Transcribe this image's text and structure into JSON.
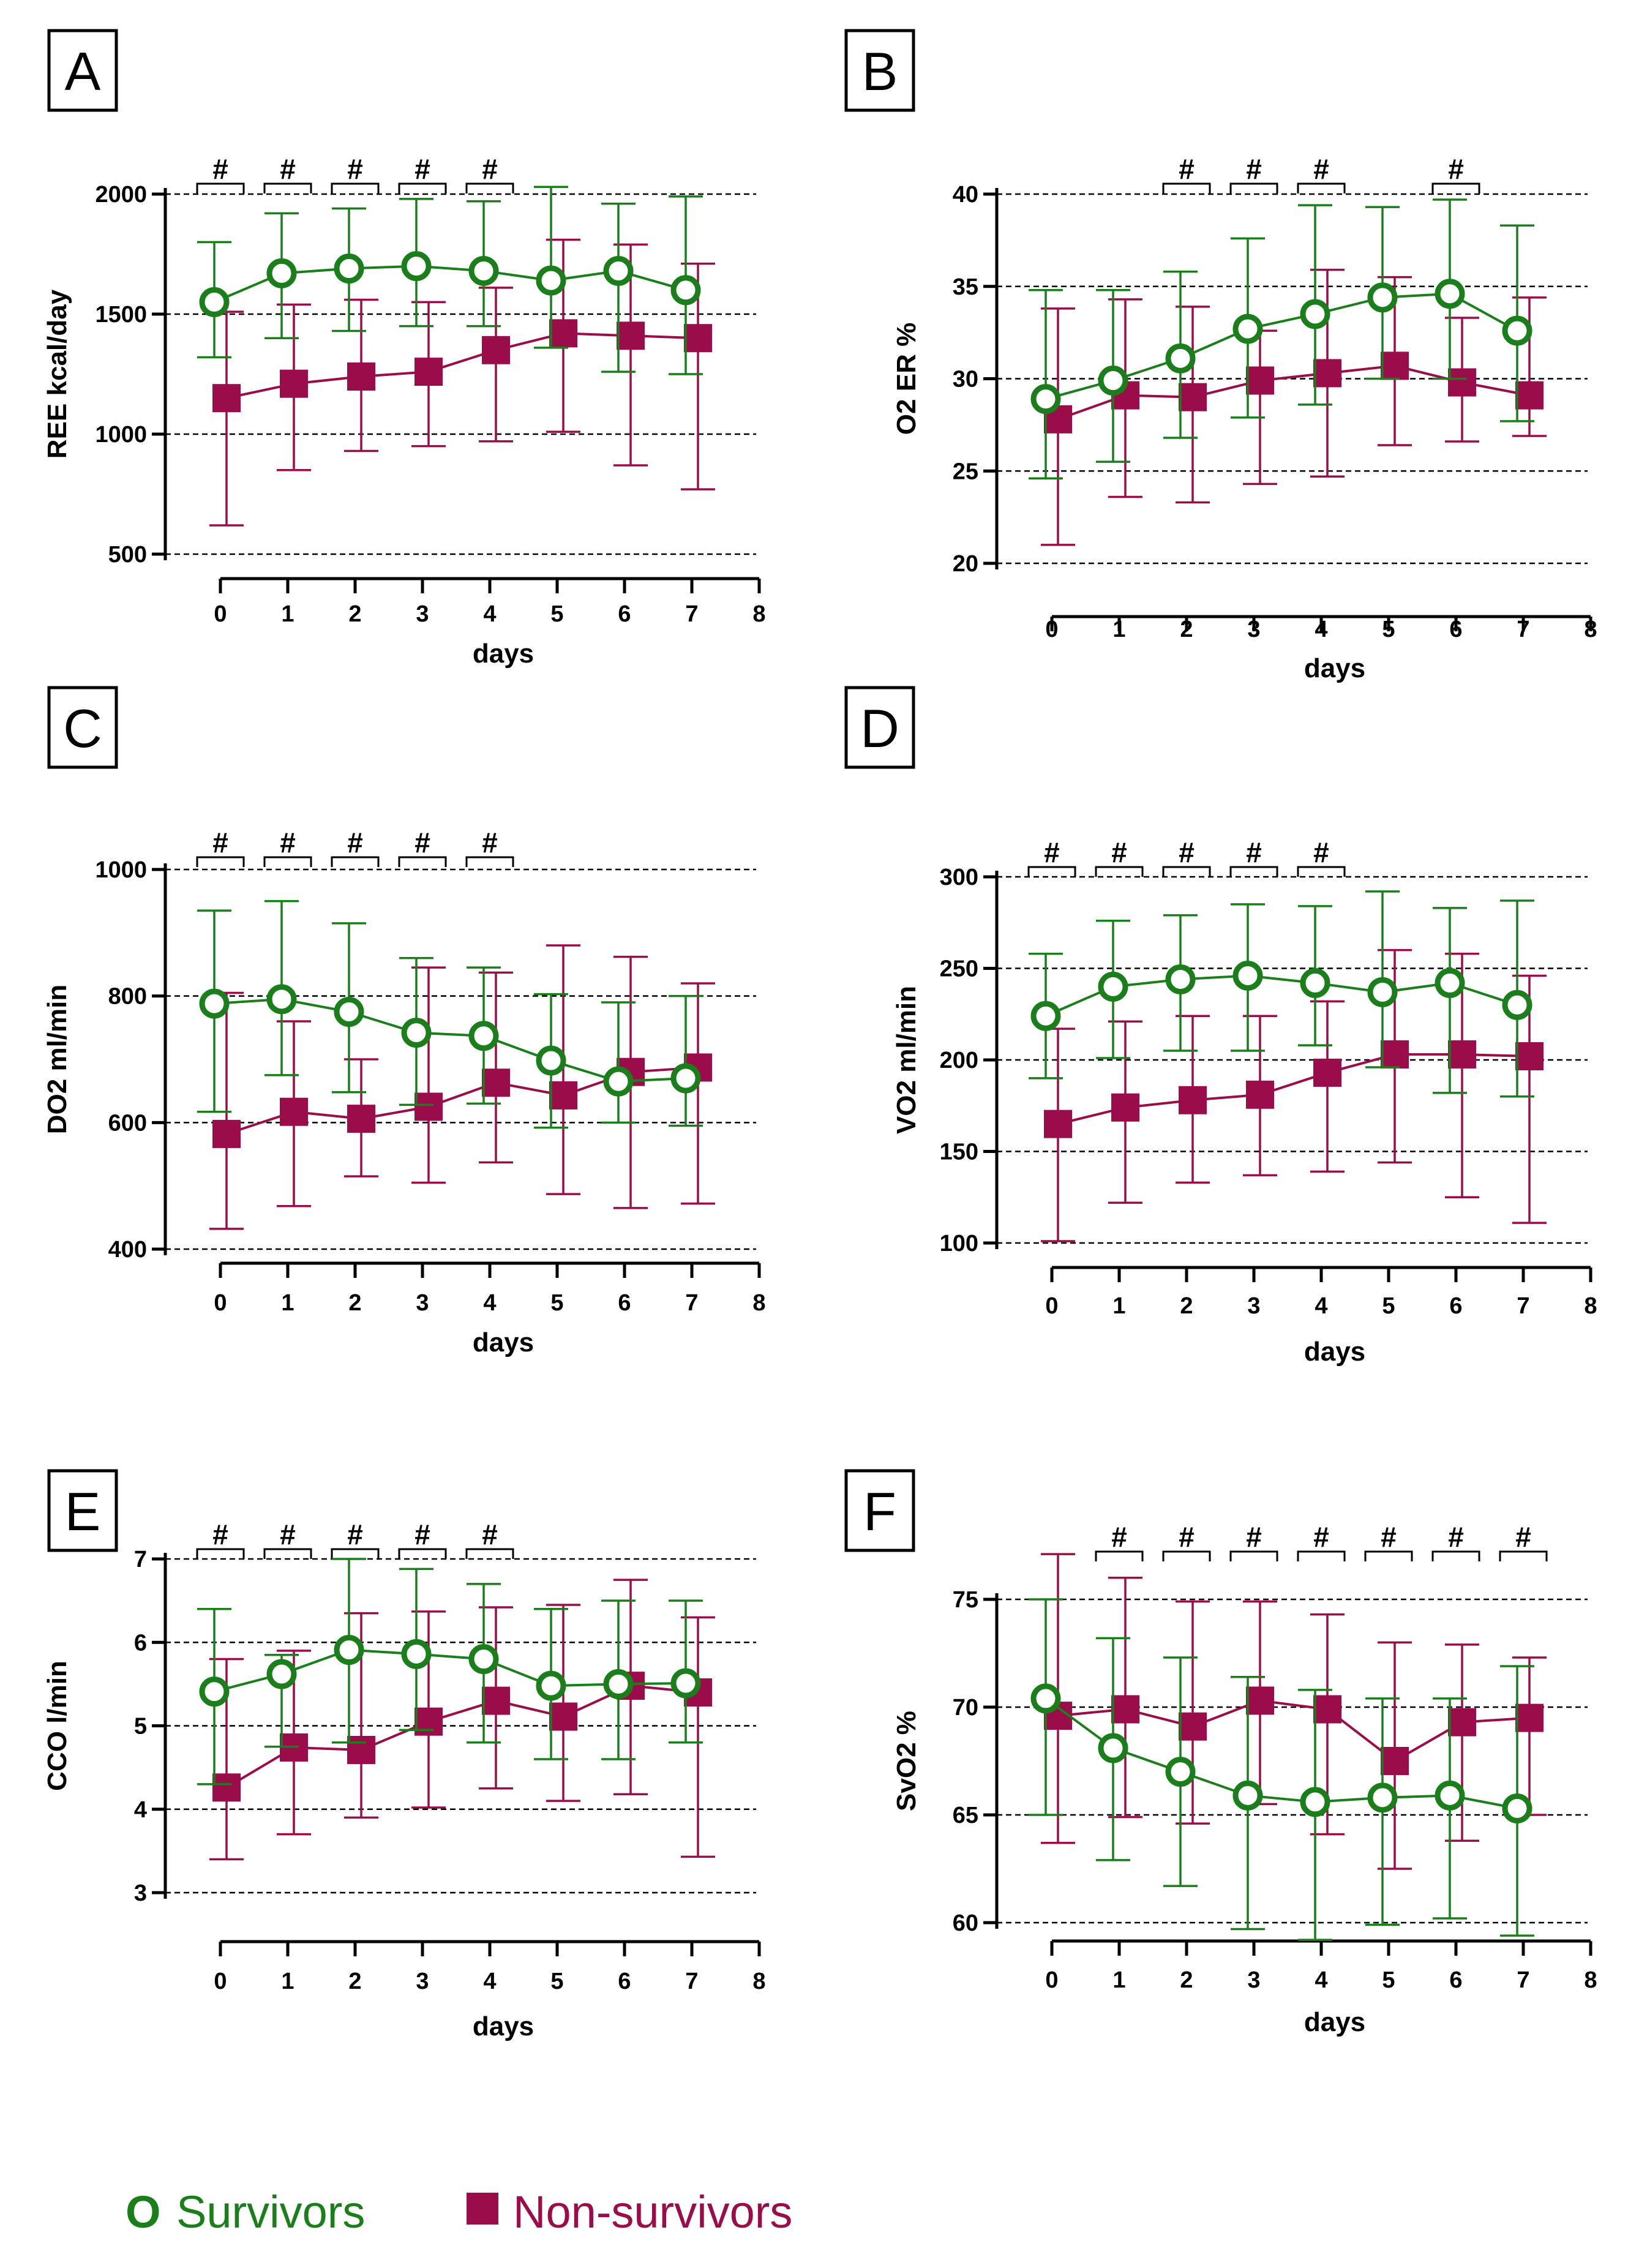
{
  "colors": {
    "survivors": "#1a7f1a",
    "non_survivors": "#9b0d4a",
    "axis": "#000000",
    "grid": "#000000"
  },
  "legend": {
    "survivors_marker": "O",
    "survivors_label": "Survivors",
    "non_survivors_label": "Non-survivors"
  },
  "chart_data": [
    {
      "panel": "A",
      "type": "line",
      "xlabel": "days",
      "ylabel": "REE kcal/day",
      "xlim": [
        0,
        8
      ],
      "ylim": [
        500,
        2000
      ],
      "xticks": [
        0,
        1,
        2,
        3,
        4,
        5,
        6,
        7,
        8
      ],
      "yticks": [
        500,
        1000,
        1500,
        2000
      ],
      "grid": "horizontal dashed",
      "significance_marker": "#",
      "significant_days": [
        0,
        1,
        2,
        3,
        4
      ],
      "series": [
        {
          "name": "Survivors",
          "marker": "open-circle",
          "x": [
            0,
            1,
            2,
            3,
            4,
            5,
            6,
            7
          ],
          "values": [
            1550,
            1670,
            1690,
            1700,
            1680,
            1640,
            1680,
            1600
          ],
          "err_low": [
            1320,
            1400,
            1430,
            1450,
            1450,
            1360,
            1260,
            1250
          ],
          "err_high": [
            1800,
            1920,
            1940,
            1980,
            1970,
            2030,
            1960,
            1990
          ]
        },
        {
          "name": "Non-survivors",
          "marker": "filled-square",
          "x": [
            0,
            1,
            2,
            3,
            4,
            5,
            6,
            7
          ],
          "values": [
            1150,
            1210,
            1240,
            1260,
            1350,
            1420,
            1410,
            1400
          ],
          "err_low": [
            620,
            850,
            930,
            950,
            970,
            1010,
            870,
            770
          ],
          "err_high": [
            1510,
            1540,
            1560,
            1550,
            1610,
            1810,
            1790,
            1710
          ]
        }
      ]
    },
    {
      "panel": "B",
      "type": "line",
      "xlabel": "days",
      "ylabel": "O2 ER %",
      "xlim": [
        0,
        8
      ],
      "ylim": [
        20,
        40
      ],
      "xticks": [
        0,
        1,
        2,
        3,
        4,
        5,
        6,
        7,
        8
      ],
      "yticks": [
        20,
        25,
        30,
        35,
        40
      ],
      "grid": "horizontal dashed",
      "significance_marker": "#",
      "significant_days": [
        2,
        3,
        4,
        6
      ],
      "series": [
        {
          "name": "Survivors",
          "marker": "open-circle",
          "x": [
            0,
            1,
            2,
            3,
            4,
            5,
            6,
            7
          ],
          "values": [
            28.9,
            29.9,
            31.1,
            32.7,
            33.5,
            34.4,
            34.6,
            32.6
          ],
          "err_low": [
            24.6,
            25.5,
            26.8,
            27.9,
            28.6,
            30.0,
            30.0,
            27.7
          ],
          "err_high": [
            34.8,
            34.8,
            35.8,
            37.6,
            39.4,
            39.3,
            39.7,
            38.3
          ]
        },
        {
          "name": "Non-survivors",
          "marker": "filled-square",
          "x": [
            0,
            1,
            2,
            3,
            4,
            5,
            6,
            7
          ],
          "values": [
            27.8,
            29.1,
            29.0,
            29.9,
            30.3,
            30.7,
            29.8,
            29.1
          ],
          "err_low": [
            21.0,
            23.6,
            23.3,
            24.3,
            24.7,
            26.4,
            26.6,
            26.9
          ],
          "err_high": [
            33.8,
            34.3,
            33.9,
            32.6,
            35.9,
            35.5,
            33.3,
            34.4
          ]
        }
      ]
    },
    {
      "panel": "C",
      "type": "line",
      "xlabel": "days",
      "ylabel": "DO2 ml/min",
      "xlim": [
        0,
        8
      ],
      "ylim": [
        400,
        1000
      ],
      "xticks": [
        0,
        1,
        2,
        3,
        4,
        5,
        6,
        7,
        8
      ],
      "yticks": [
        400,
        600,
        800,
        1000
      ],
      "grid": "horizontal dashed",
      "significance_marker": "#",
      "significant_days": [
        0,
        1,
        2,
        3,
        4
      ],
      "series": [
        {
          "name": "Survivors",
          "marker": "open-circle",
          "x": [
            0,
            1,
            2,
            3,
            4,
            5,
            6,
            7
          ],
          "values": [
            788,
            795,
            775,
            742,
            737,
            698,
            665,
            670
          ],
          "err_low": [
            617,
            675,
            648,
            628,
            630,
            592,
            600,
            595
          ],
          "err_high": [
            935,
            950,
            915,
            860,
            845,
            803,
            790,
            800
          ]
        },
        {
          "name": "Non-survivors",
          "marker": "filled-square",
          "x": [
            0,
            1,
            2,
            3,
            4,
            5,
            6,
            7
          ],
          "values": [
            582,
            617,
            606,
            625,
            663,
            643,
            680,
            687
          ],
          "err_low": [
            432,
            468,
            515,
            505,
            537,
            487,
            465,
            472
          ],
          "err_high": [
            805,
            760,
            700,
            845,
            837,
            880,
            862,
            820
          ]
        }
      ]
    },
    {
      "panel": "D",
      "type": "line",
      "xlabel": "days",
      "ylabel": "VO2 ml/min",
      "xlim": [
        0,
        8
      ],
      "ylim": [
        100,
        300
      ],
      "xticks": [
        0,
        1,
        2,
        3,
        4,
        5,
        6,
        7,
        8
      ],
      "yticks": [
        100,
        150,
        200,
        250,
        300
      ],
      "grid": "horizontal dashed",
      "significance_marker": "#",
      "significant_days": [
        0,
        1,
        2,
        3,
        4
      ],
      "series": [
        {
          "name": "Survivors",
          "marker": "open-circle",
          "x": [
            0,
            1,
            2,
            3,
            4,
            5,
            6,
            7
          ],
          "values": [
            224,
            240,
            244,
            246,
            242,
            237,
            242,
            230
          ],
          "err_low": [
            190,
            201,
            205,
            205,
            208,
            196,
            182,
            180
          ],
          "err_high": [
            258,
            276,
            279,
            285,
            284,
            292,
            283,
            287
          ]
        },
        {
          "name": "Non-survivors",
          "marker": "filled-square",
          "x": [
            0,
            1,
            2,
            3,
            4,
            5,
            6,
            7
          ],
          "values": [
            165,
            174,
            178,
            181,
            193,
            203,
            203,
            202
          ],
          "err_low": [
            101,
            122,
            133,
            137,
            139,
            144,
            125,
            111
          ],
          "err_high": [
            217,
            221,
            224,
            224,
            232,
            260,
            258,
            246
          ]
        }
      ]
    },
    {
      "panel": "E",
      "type": "line",
      "xlabel": "days",
      "ylabel": "CCO l/min",
      "xlim": [
        0,
        8
      ],
      "ylim": [
        3,
        7
      ],
      "xticks": [
        0,
        1,
        2,
        3,
        4,
        5,
        6,
        7,
        8
      ],
      "yticks": [
        3,
        4,
        5,
        6,
        7
      ],
      "grid": "horizontal dashed",
      "significance_marker": "#",
      "significant_days": [
        0,
        1,
        2,
        3,
        4
      ],
      "series": [
        {
          "name": "Survivors",
          "marker": "open-circle",
          "x": [
            0,
            1,
            2,
            3,
            4,
            5,
            6,
            7
          ],
          "values": [
            5.41,
            5.62,
            5.91,
            5.86,
            5.8,
            5.48,
            5.5,
            5.51
          ],
          "err_low": [
            4.3,
            4.75,
            4.8,
            4.95,
            4.8,
            4.6,
            4.6,
            4.8
          ],
          "err_high": [
            6.4,
            5.85,
            7.0,
            6.88,
            6.7,
            6.4,
            6.5,
            6.5
          ]
        },
        {
          "name": "Non-survivors",
          "marker": "filled-square",
          "x": [
            0,
            1,
            2,
            3,
            4,
            5,
            6,
            7
          ],
          "values": [
            4.26,
            4.74,
            4.71,
            5.05,
            5.3,
            5.11,
            5.48,
            5.4
          ],
          "err_low": [
            3.4,
            3.7,
            3.9,
            4.02,
            4.25,
            4.1,
            4.18,
            3.43
          ],
          "err_high": [
            5.8,
            5.9,
            6.35,
            6.37,
            6.42,
            6.45,
            6.75,
            6.3
          ]
        }
      ]
    },
    {
      "panel": "F",
      "type": "line",
      "xlabel": "days",
      "ylabel": "SvO2 %",
      "xlim": [
        0,
        8
      ],
      "ylim": [
        60,
        75
      ],
      "xticks": [
        0,
        1,
        2,
        3,
        4,
        5,
        6,
        7,
        8
      ],
      "yticks": [
        60,
        65,
        70,
        75
      ],
      "grid": "horizontal dashed",
      "significance_marker": "#",
      "significant_days": [
        1,
        2,
        3,
        4,
        5,
        6,
        7
      ],
      "series": [
        {
          "name": "Survivors",
          "marker": "open-circle",
          "x": [
            0,
            1,
            2,
            3,
            4,
            5,
            6,
            7
          ],
          "values": [
            70.4,
            68.1,
            67.0,
            65.9,
            65.6,
            65.8,
            65.9,
            65.3
          ],
          "err_low": [
            65.0,
            62.9,
            61.7,
            59.7,
            59.2,
            59.9,
            60.2,
            59.4
          ],
          "err_high": [
            75.0,
            73.2,
            72.3,
            71.4,
            70.8,
            70.4,
            70.4,
            71.9
          ]
        },
        {
          "name": "Non-survivors",
          "marker": "filled-square",
          "x": [
            0,
            1,
            2,
            3,
            4,
            5,
            6,
            7
          ],
          "values": [
            69.6,
            69.9,
            69.1,
            70.3,
            69.9,
            67.5,
            69.3,
            69.5
          ],
          "err_low": [
            63.7,
            64.9,
            64.6,
            65.5,
            64.1,
            62.5,
            63.8,
            65.0
          ],
          "err_high": [
            77.1,
            76.0,
            74.9,
            74.9,
            74.3,
            73.0,
            72.9,
            72.3
          ]
        }
      ]
    }
  ]
}
